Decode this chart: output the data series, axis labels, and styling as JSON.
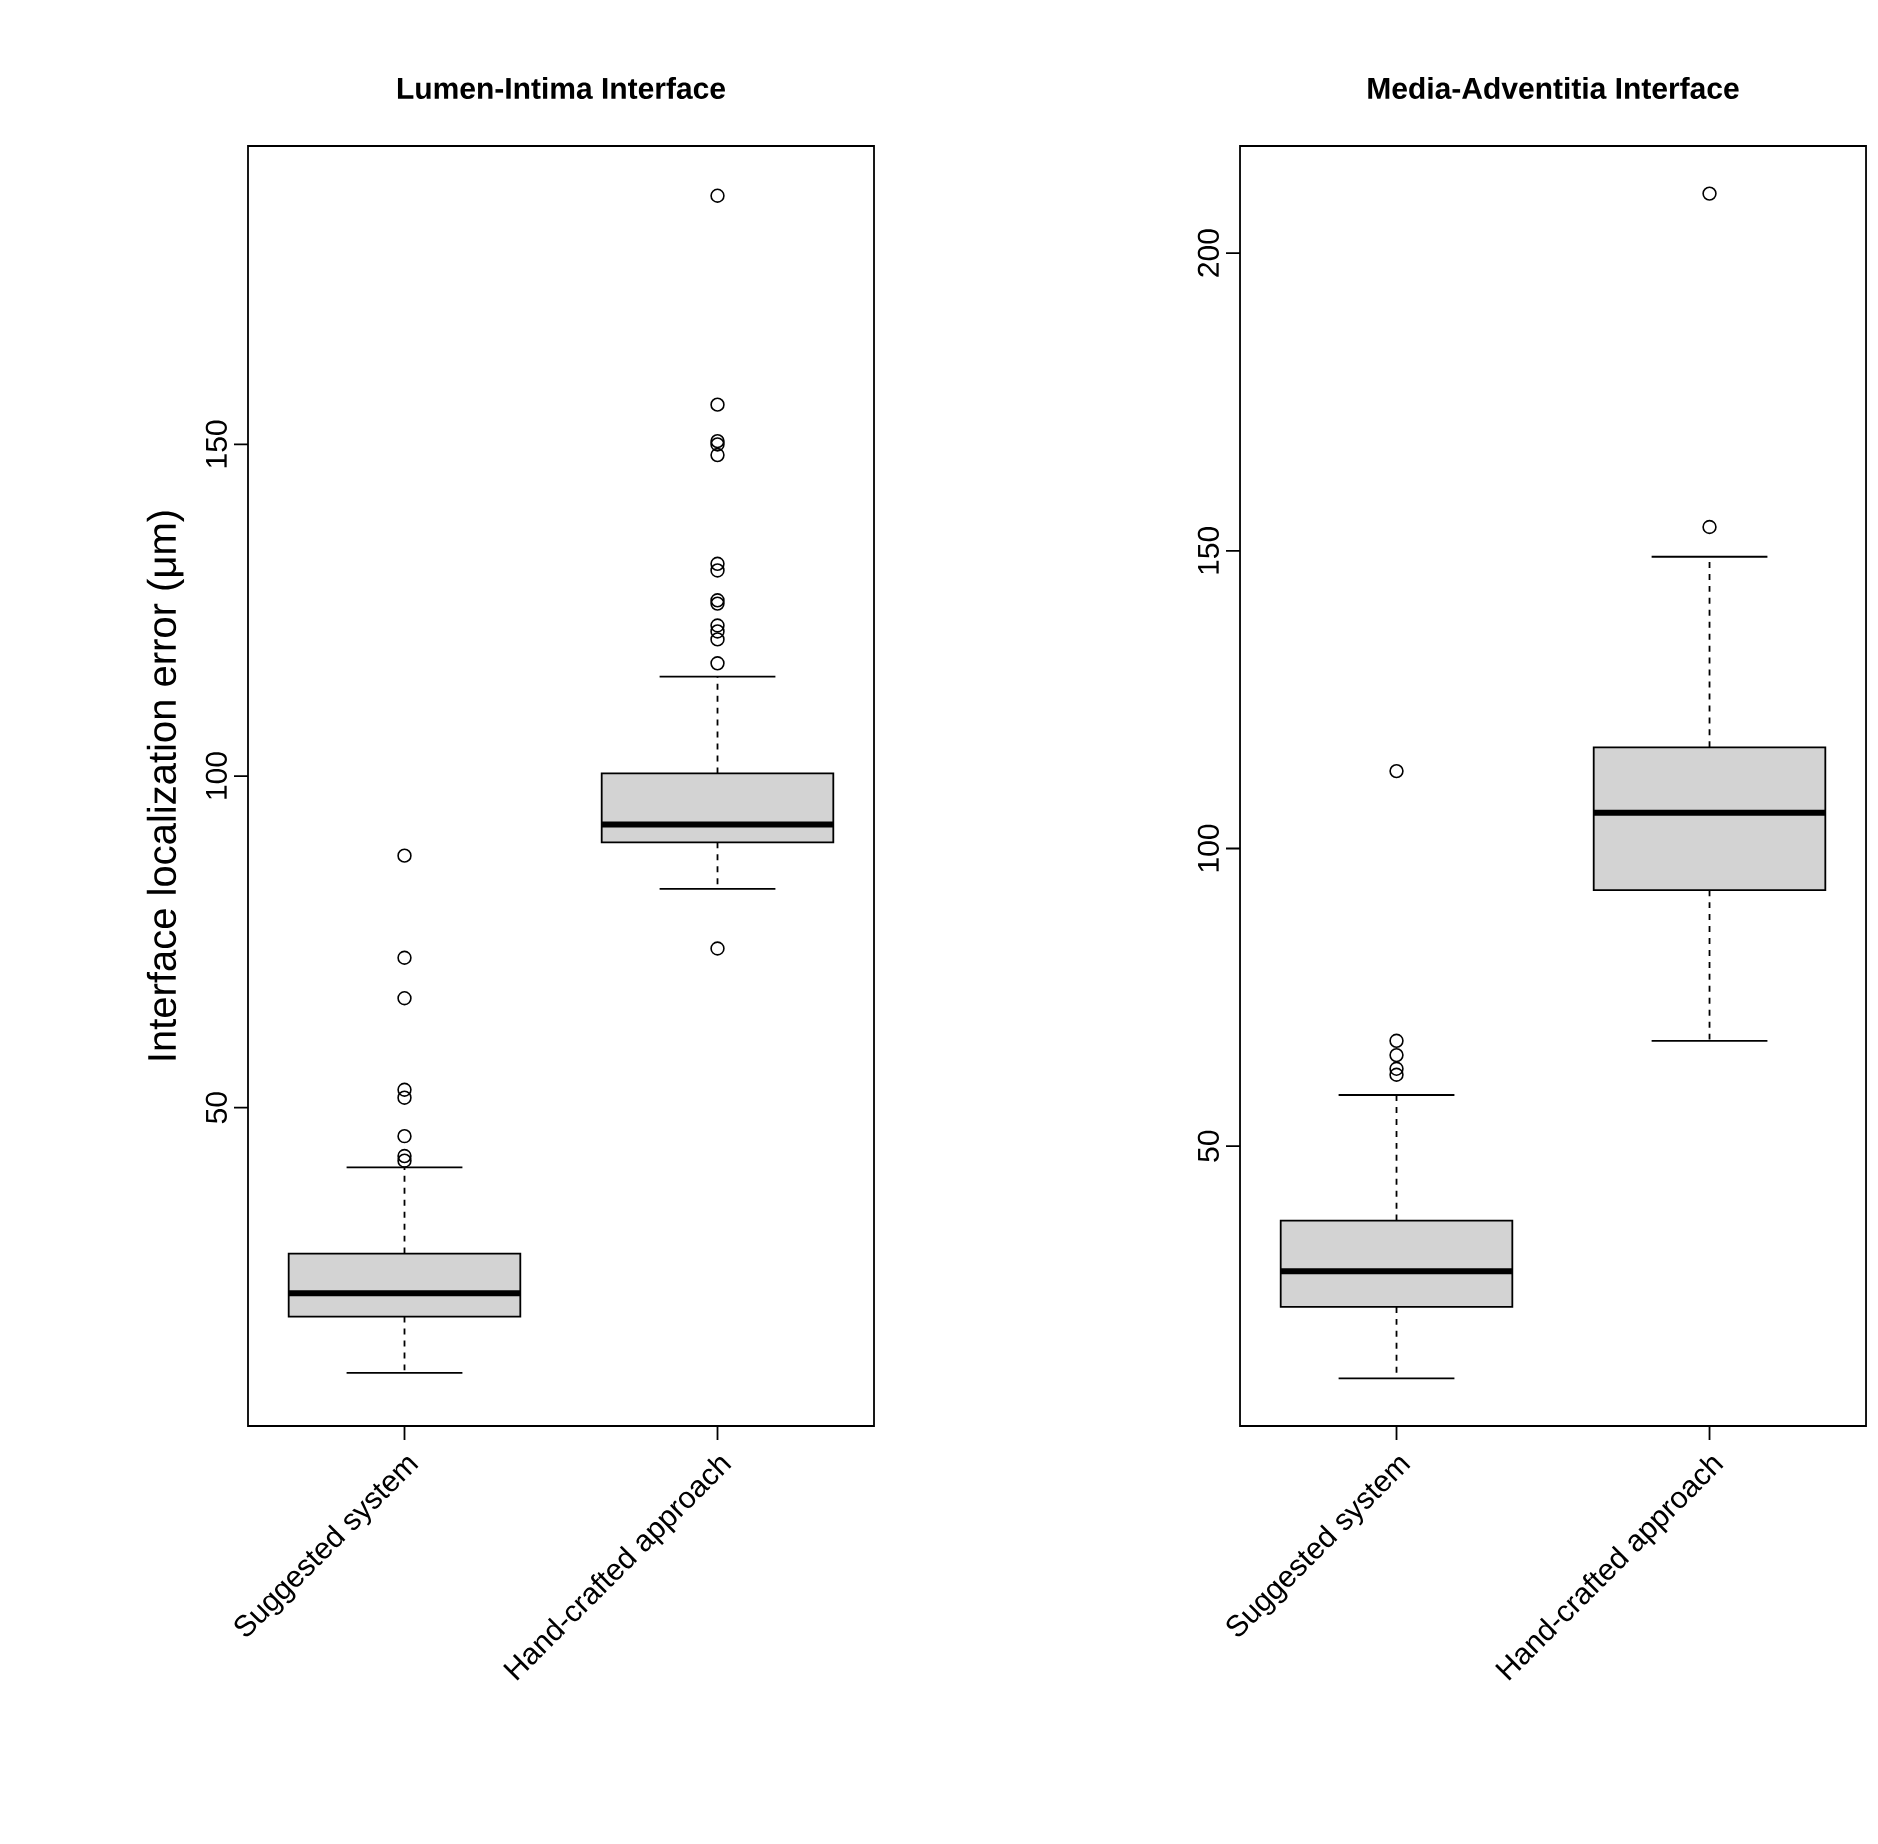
{
  "chart_data": [
    {
      "type": "box",
      "title": "Lumen-Intima Interface",
      "ylabel": "Interface localization error (μm)",
      "categories": [
        "Suggested system",
        "Hand-crafted approach"
      ],
      "color": "#d3d3d3",
      "marker": "circle",
      "ylim": [
        2,
        195
      ],
      "yticks": [
        50,
        100,
        150
      ],
      "boxes": [
        {
          "low": 10,
          "q1": 18.5,
          "median": 22,
          "q3": 28,
          "high": 41,
          "outliers": [
            42,
            42.7,
            45.7,
            51.5,
            52.7,
            66.5,
            72.6,
            88
          ]
        },
        {
          "low": 83,
          "q1": 90,
          "median": 92.7,
          "q3": 100.4,
          "high": 115,
          "outliers": [
            74,
            117,
            120.6,
            121.8,
            122.7,
            126,
            126.5,
            131,
            132,
            148.4,
            150,
            150.5,
            156,
            187.5
          ]
        }
      ]
    },
    {
      "type": "box",
      "title": "Media-Adventitia Interface",
      "categories": [
        "Suggested system",
        "Hand-crafted approach"
      ],
      "color": "#d3d3d3",
      "marker": "circle",
      "ylim": [
        3,
        218
      ],
      "yticks": [
        50,
        100,
        150,
        200
      ],
      "boxes": [
        {
          "low": 11,
          "q1": 23,
          "median": 29,
          "q3": 37.5,
          "high": 58.6,
          "outliers": [
            62,
            63,
            65.3,
            67.7,
            113
          ]
        },
        {
          "low": 67.7,
          "q1": 93,
          "median": 106,
          "q3": 117,
          "high": 149,
          "outliers": [
            154,
            210
          ]
        }
      ]
    }
  ]
}
